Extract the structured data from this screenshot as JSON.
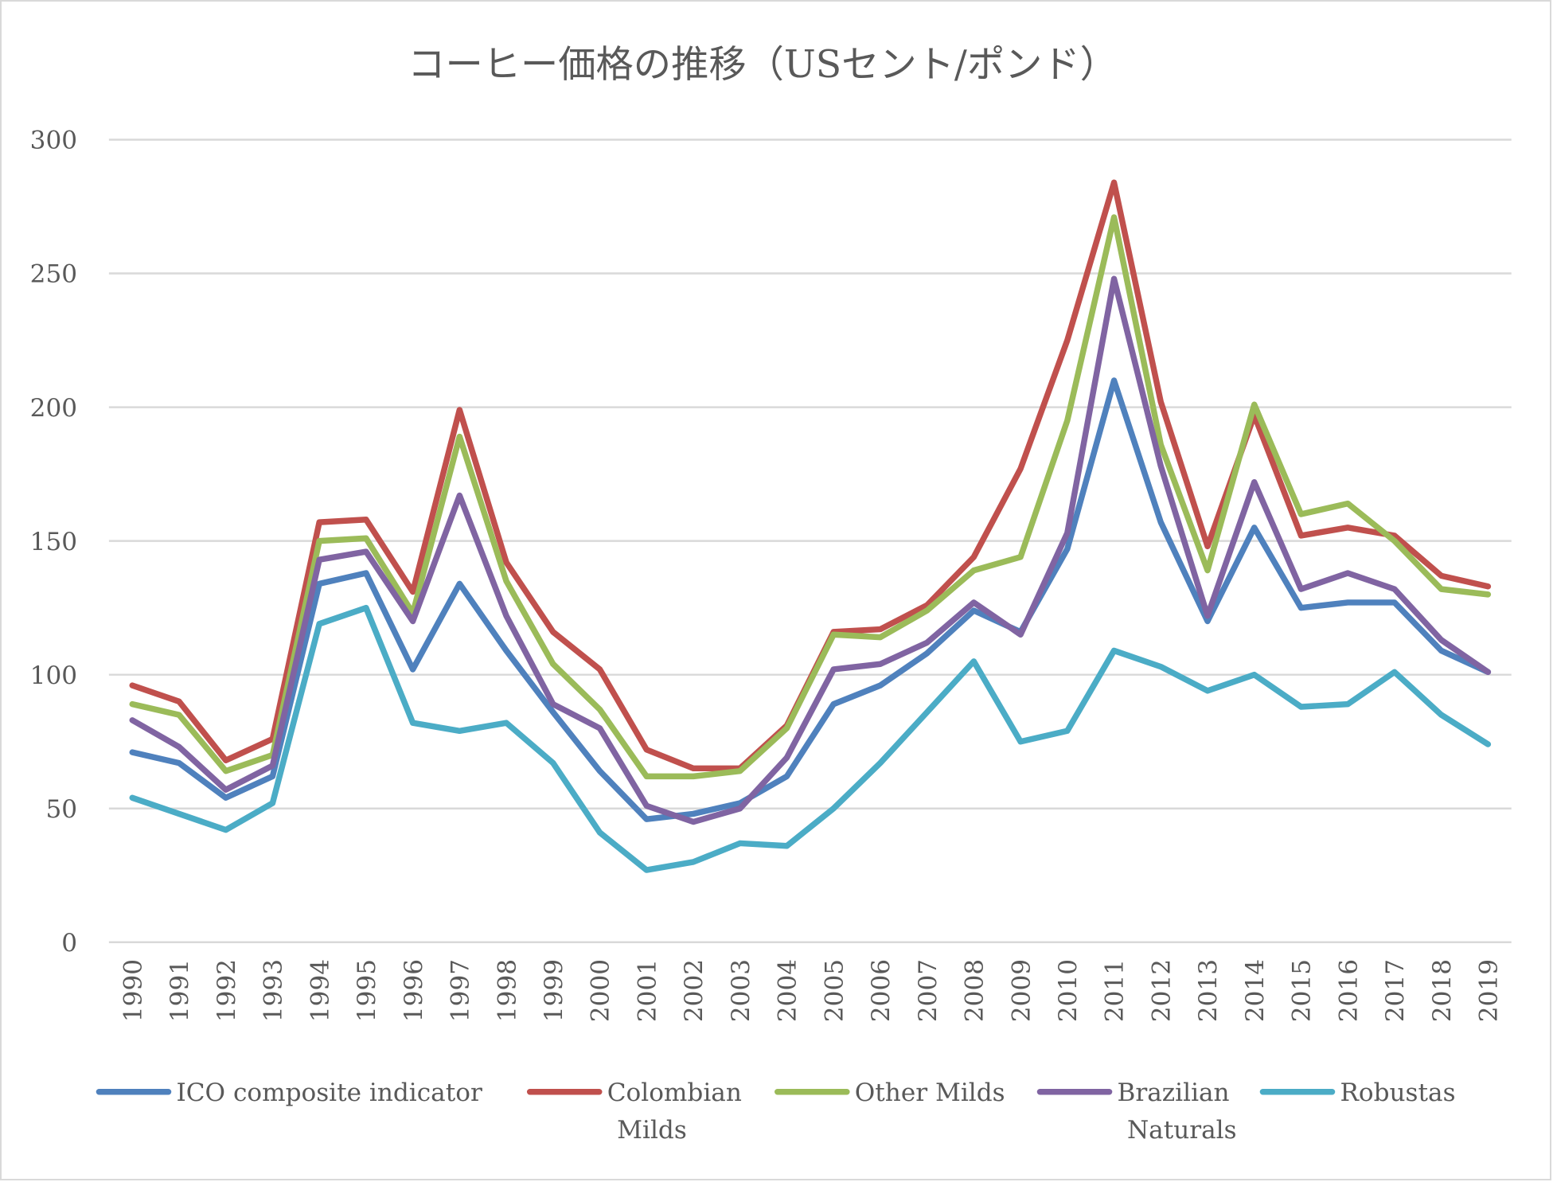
{
  "chart_data": {
    "type": "line",
    "title": "コーヒー価格の推移（USセント/ポンド）",
    "xlabel": "",
    "ylabel": "",
    "ylim": [
      0,
      300
    ],
    "yticks": [
      "0",
      "50",
      "100",
      "150",
      "200",
      "250",
      "300"
    ],
    "ytick_values": [
      0,
      50,
      100,
      150,
      200,
      250,
      300
    ],
    "grid": "horizontal",
    "legend_position": "bottom",
    "categories": [
      "1990",
      "1991",
      "1992",
      "1993",
      "1994",
      "1995",
      "1996",
      "1997",
      "1998",
      "1999",
      "2000",
      "2001",
      "2002",
      "2003",
      "2004",
      "2005",
      "2006",
      "2007",
      "2008",
      "2009",
      "2010",
      "2011",
      "2012",
      "2013",
      "2014",
      "2015",
      "2016",
      "2017",
      "2018",
      "2019"
    ],
    "series": [
      {
        "name": "ICO composite indicator",
        "legend_lines": [
          "ICO composite indicator"
        ],
        "color": "#4f81bd",
        "values": [
          71,
          67,
          54,
          62,
          134,
          138,
          102,
          134,
          109,
          86,
          64,
          46,
          48,
          52,
          62,
          89,
          96,
          108,
          124,
          116,
          147,
          210,
          157,
          120,
          155,
          125,
          127,
          127,
          109,
          101
        ]
      },
      {
        "name": "Colombian Milds",
        "legend_lines": [
          "Colombian",
          "Milds"
        ],
        "color": "#c0504d",
        "values": [
          96,
          90,
          68,
          76,
          157,
          158,
          131,
          199,
          142,
          116,
          102,
          72,
          65,
          65,
          81,
          116,
          117,
          126,
          144,
          177,
          225,
          284,
          202,
          148,
          197,
          152,
          155,
          152,
          137,
          133
        ]
      },
      {
        "name": "Other Milds",
        "legend_lines": [
          "Other Milds"
        ],
        "color": "#9bbb59",
        "values": [
          89,
          85,
          64,
          70,
          150,
          151,
          123,
          189,
          135,
          104,
          87,
          62,
          62,
          64,
          80,
          115,
          114,
          124,
          139,
          144,
          195,
          271,
          186,
          139,
          201,
          160,
          164,
          150,
          132,
          130
        ]
      },
      {
        "name": "Brazilian Naturals",
        "legend_lines": [
          "Brazilian",
          "Naturals"
        ],
        "color": "#8064a2",
        "values": [
          83,
          73,
          57,
          66,
          143,
          146,
          120,
          167,
          122,
          89,
          80,
          51,
          45,
          50,
          69,
          102,
          104,
          112,
          127,
          115,
          153,
          248,
          178,
          122,
          172,
          132,
          138,
          132,
          113,
          101
        ]
      },
      {
        "name": "Robustas",
        "legend_lines": [
          "Robustas"
        ],
        "color": "#4bacc6",
        "values": [
          54,
          48,
          42,
          52,
          119,
          125,
          82,
          79,
          82,
          67,
          41,
          27,
          30,
          37,
          36,
          50,
          67,
          86,
          105,
          75,
          79,
          109,
          103,
          94,
          100,
          88,
          89,
          101,
          85,
          74
        ]
      }
    ]
  }
}
